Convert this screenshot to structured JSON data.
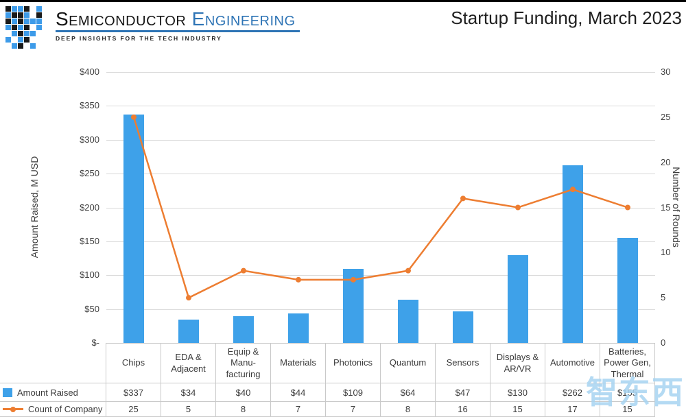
{
  "header": {
    "brand_word1": "Semiconductor",
    "brand_word2": "Engineering",
    "tagline": "DEEP INSIGHTS FOR THE TECH INDUSTRY",
    "title": "Startup Funding, March 2023"
  },
  "watermark": "智东西",
  "chart_data": {
    "type": "bar",
    "subtype": "bar+line combo, dual axis",
    "title": "Startup Funding, March 2023",
    "categories": [
      "Chips",
      "EDA & Adjacent",
      "Equip & Manu-facturing",
      "Materials",
      "Photonics",
      "Quantum",
      "Sensors",
      "Displays & AR/VR",
      "Automotive",
      "Batteries, Power Gen, Thermal"
    ],
    "series": [
      {
        "name": "Amount Raised",
        "type": "bar",
        "axis": "left",
        "values": [
          337,
          34,
          40,
          44,
          109,
          64,
          47,
          130,
          262,
          155
        ],
        "labels": [
          "$337",
          "$34",
          "$40",
          "$44",
          "$109",
          "$64",
          "$47",
          "$130",
          "$262",
          "$155"
        ],
        "color": "#3ea1e9"
      },
      {
        "name": "Count of Company",
        "type": "line",
        "axis": "right",
        "values": [
          25,
          5,
          8,
          7,
          7,
          8,
          16,
          15,
          17,
          15
        ],
        "color": "#ed7d31"
      }
    ],
    "left_axis": {
      "label": "Amount Raised, M USD",
      "min": 0,
      "max": 400,
      "ticks": [
        "$400",
        "$350",
        "$300",
        "$250",
        "$200",
        "$150",
        "$100",
        "$50",
        "$-"
      ]
    },
    "right_axis": {
      "label": "Number of Rounds",
      "min": 0,
      "max": 30,
      "ticks": [
        "30",
        "25",
        "20",
        "15",
        "10",
        "5",
        "0"
      ]
    },
    "grid": true,
    "legend_position": "bottom-left table column"
  }
}
